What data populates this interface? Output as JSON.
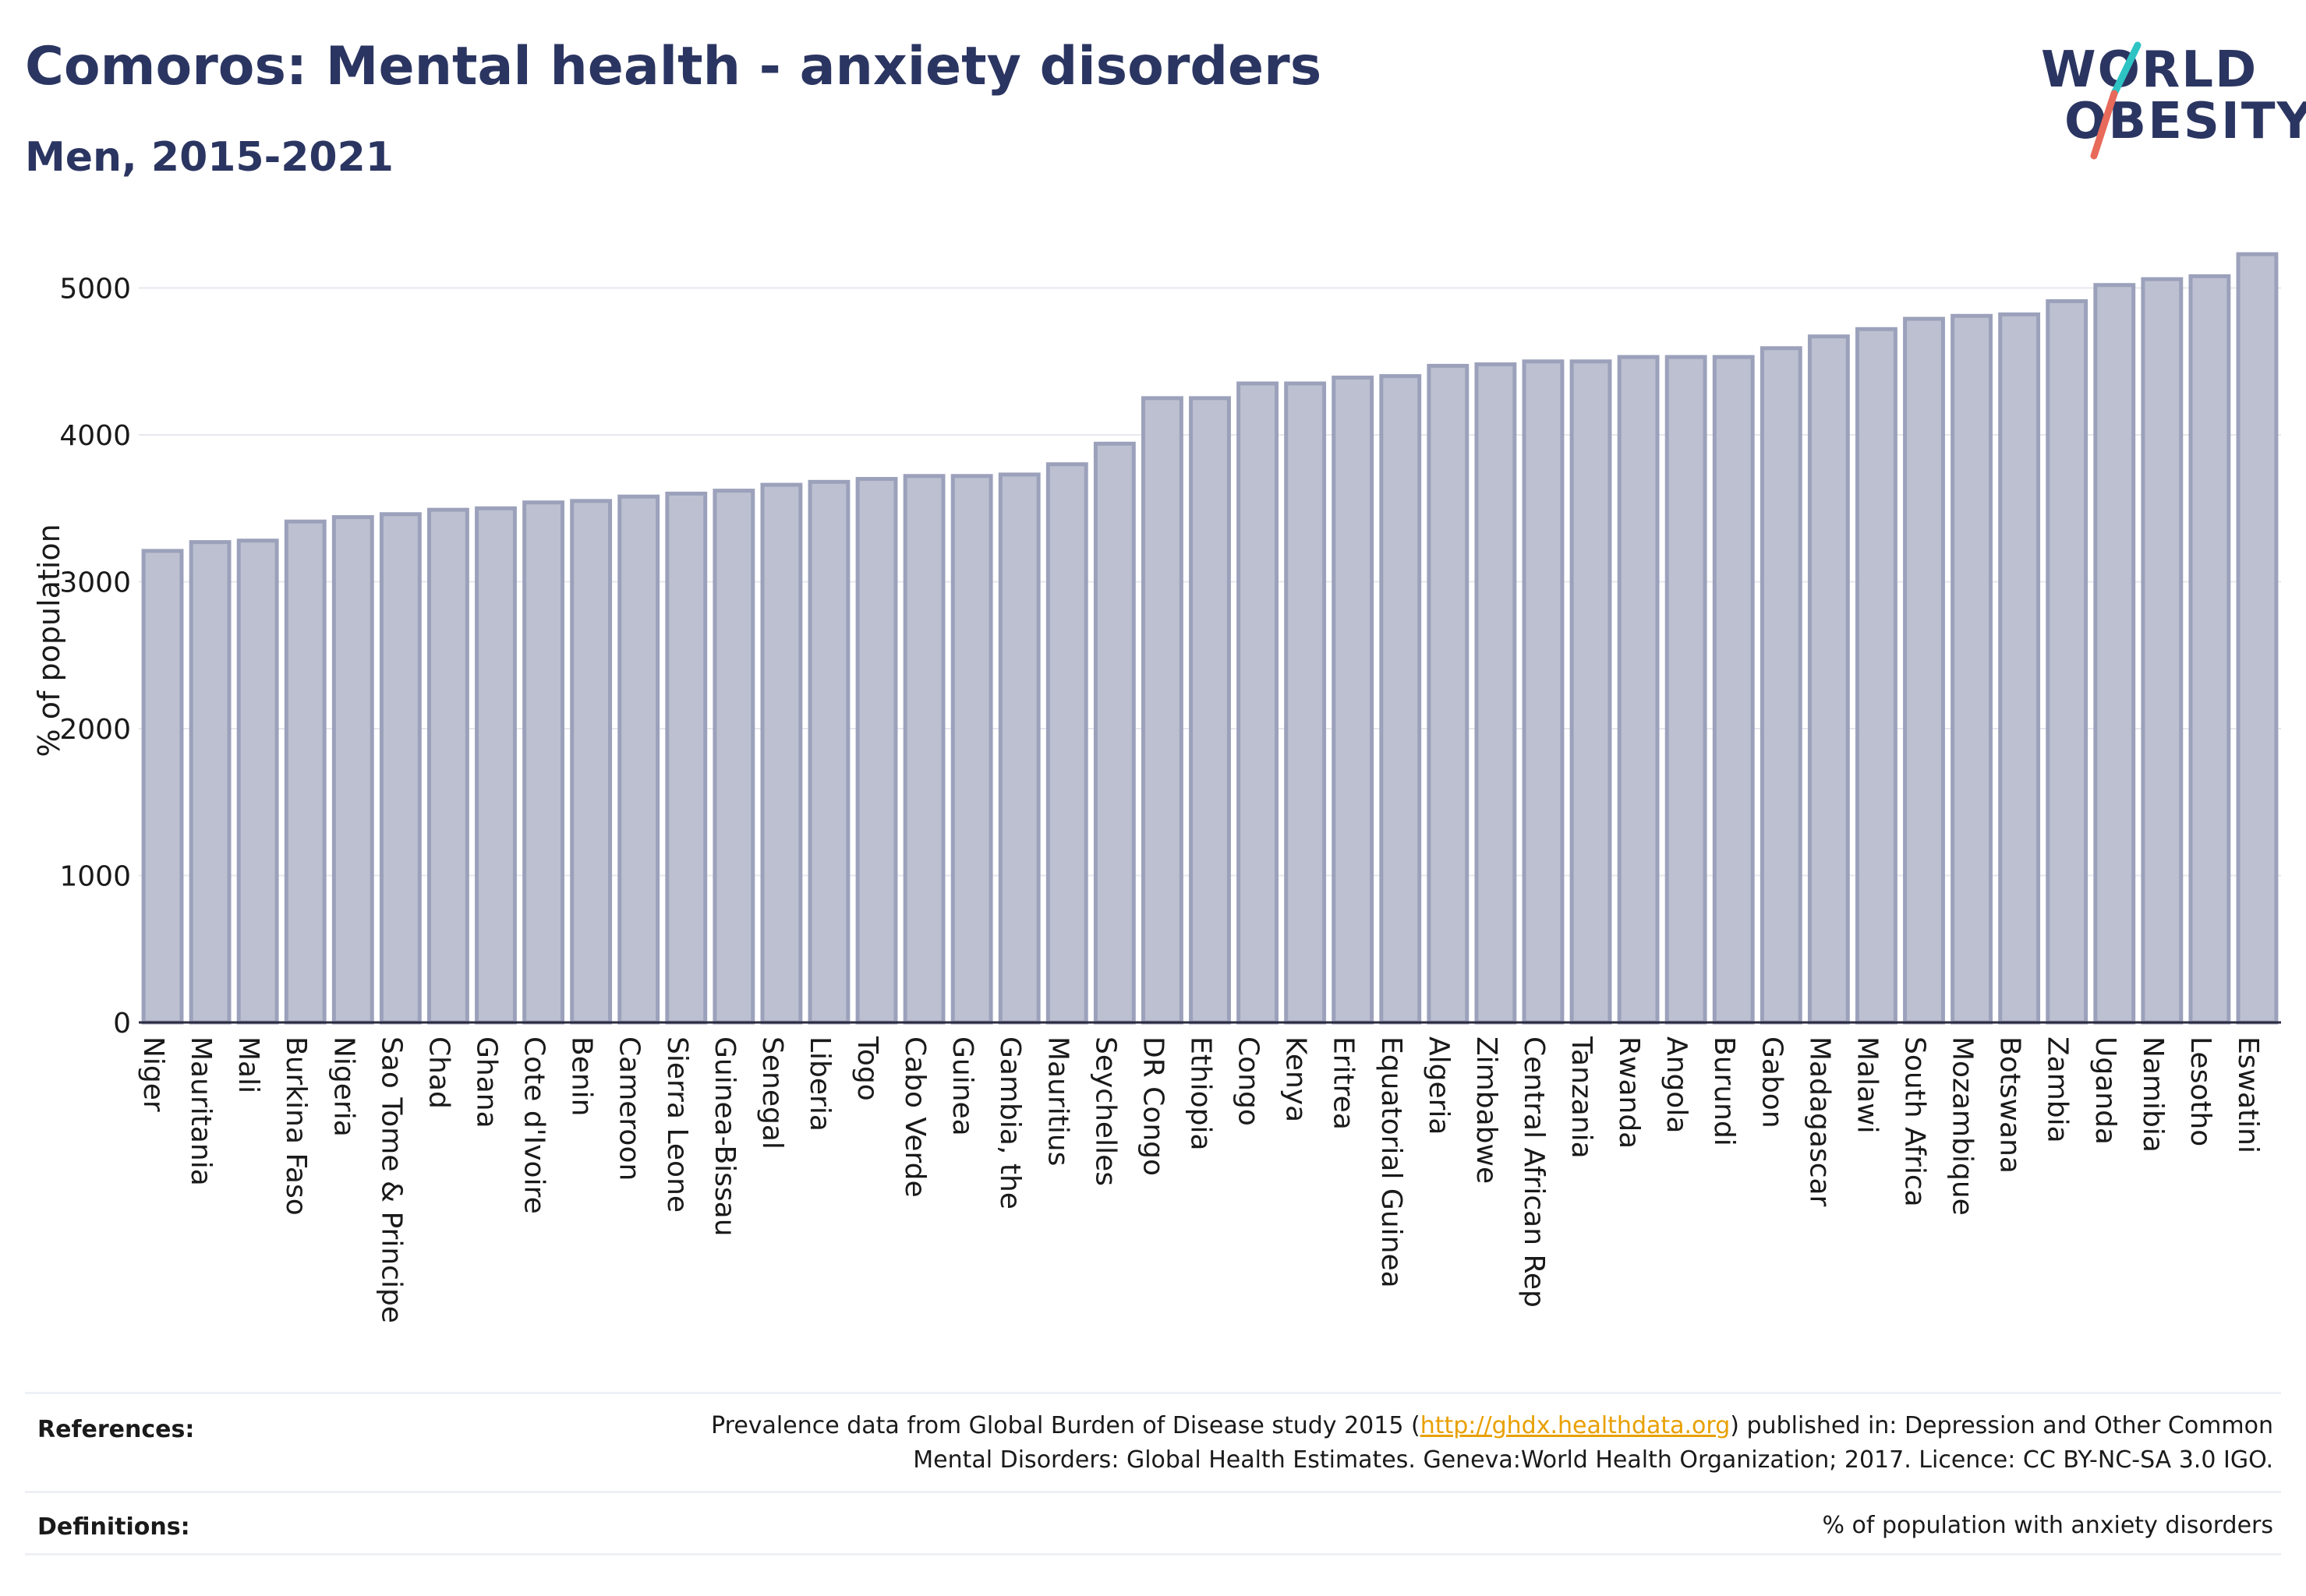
{
  "header": {
    "title": "Comoros: Mental health - anxiety disorders",
    "subtitle": "Men, 2015-2021"
  },
  "logo": {
    "line1": "WORLD",
    "line2": "OBESITY",
    "colors": {
      "text": "#2b3561",
      "slash_top": "#2ec4c4",
      "slash_bottom": "#e86a5a"
    }
  },
  "chart_data": {
    "type": "bar",
    "ylabel": "% of population",
    "xlabel": "",
    "ylim": [
      0,
      5300
    ],
    "yticks": [
      0,
      1000,
      2000,
      3000,
      4000,
      5000
    ],
    "grid": true,
    "bar_fill": "#bcc0d0",
    "bar_stroke": "#9ca1bb",
    "categories": [
      "Niger",
      "Mauritania",
      "Mali",
      "Burkina Faso",
      "Nigeria",
      "Sao Tome & Principe",
      "Chad",
      "Ghana",
      "Cote d'Ivoire",
      "Benin",
      "Cameroon",
      "Sierra Leone",
      "Guinea-Bissau",
      "Senegal",
      "Liberia",
      "Togo",
      "Cabo Verde",
      "Guinea",
      "Gambia, the",
      "Mauritius",
      "Seychelles",
      "DR Congo",
      "Ethiopia",
      "Congo",
      "Kenya",
      "Eritrea",
      "Equatorial Guinea",
      "Algeria",
      "Zimbabwe",
      "Central African Rep",
      "Tanzania",
      "Rwanda",
      "Angola",
      "Burundi",
      "Gabon",
      "Madagascar",
      "Malawi",
      "South Africa",
      "Mozambique",
      "Botswana",
      "Zambia",
      "Uganda",
      "Namibia",
      "Lesotho",
      "Eswatini"
    ],
    "values": [
      3210,
      3270,
      3280,
      3410,
      3440,
      3460,
      3490,
      3500,
      3540,
      3550,
      3580,
      3600,
      3620,
      3660,
      3680,
      3700,
      3720,
      3720,
      3730,
      3800,
      3940,
      4250,
      4250,
      4350,
      4350,
      4390,
      4400,
      4470,
      4480,
      4500,
      4500,
      4530,
      4530,
      4530,
      4590,
      4670,
      4720,
      4790,
      4810,
      4820,
      4910,
      5020,
      5060,
      5080,
      5230
    ]
  },
  "footer": {
    "references_label": "References:",
    "references_text_1": "Prevalence data from Global Burden of Disease study 2015 (",
    "references_link": "http://ghdx.healthdata.org",
    "references_text_2": ") published in: Depression and Other Common",
    "references_text_3": "Mental Disorders: Global Health Estimates. Geneva:World Health Organization; 2017. Licence: CC BY-NC-SA 3.0 IGO.",
    "definitions_label": "Definitions:",
    "definitions_text": "% of population with anxiety disorders"
  }
}
